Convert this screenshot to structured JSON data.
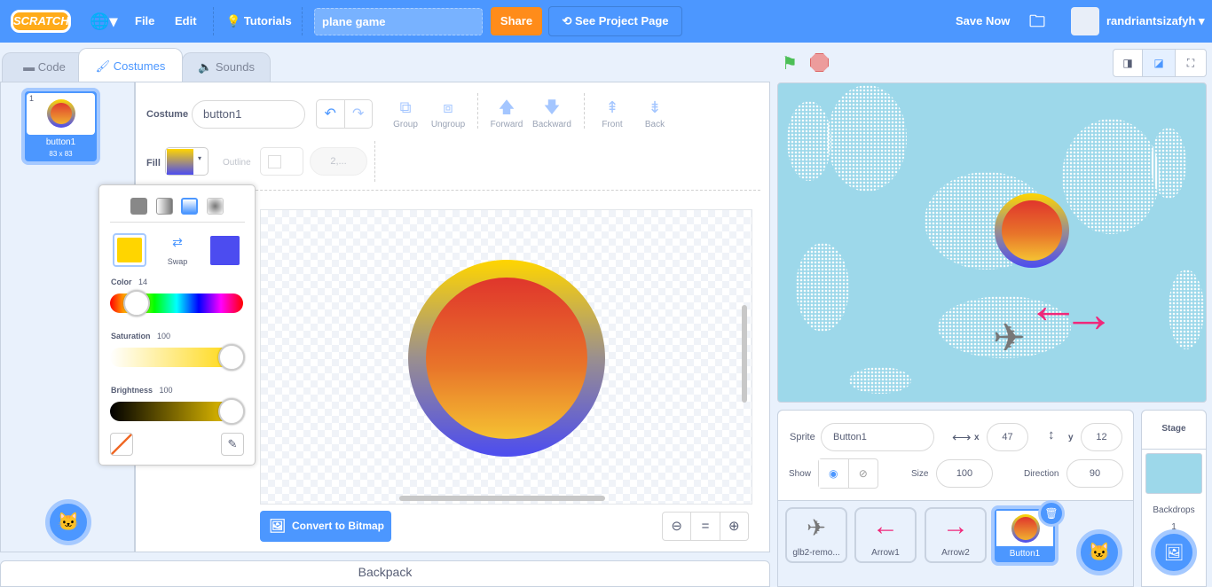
{
  "menu": {
    "logo": "SCRATCH",
    "file": "File",
    "edit": "Edit",
    "tutorials": "Tutorials",
    "project_title": "plane game",
    "share": "Share",
    "see_project_page": "See Project Page",
    "save_now": "Save Now",
    "username": "randriantsizafyh"
  },
  "tabs": [
    {
      "label": "Code"
    },
    {
      "label": "Costumes"
    },
    {
      "label": "Sounds"
    }
  ],
  "costume_list": [
    {
      "index": "1",
      "name": "button1",
      "size": "83 x 83"
    }
  ],
  "editor": {
    "costume_label": "Costume",
    "costume_name": "button1",
    "tools": [
      "Group",
      "Ungroup",
      "Forward",
      "Backward",
      "Front",
      "Back"
    ],
    "fill_label": "Fill",
    "outline_label": "Outline",
    "outline_width": "2,...",
    "convert_button": "Convert to Bitmap"
  },
  "color_picker": {
    "swap_label": "Swap",
    "color_label": "Color",
    "color_value": "14",
    "saturation_label": "Saturation",
    "saturation_value": "100",
    "brightness_label": "Brightness",
    "brightness_value": "100",
    "primary": "#ffd500",
    "secondary": "#4c4cf0"
  },
  "sprite_info": {
    "sprite_label": "Sprite",
    "sprite_name": "Button1",
    "x_label": "x",
    "x": "47",
    "y_label": "y",
    "y": "12",
    "show_label": "Show",
    "size_label": "Size",
    "size": "100",
    "direction_label": "Direction",
    "direction": "90"
  },
  "sprites": [
    {
      "name": "glb2-remo..."
    },
    {
      "name": "Arrow1"
    },
    {
      "name": "Arrow2"
    },
    {
      "name": "Button1"
    }
  ],
  "stage_pane": {
    "title": "Stage",
    "backdrops_label": "Backdrops",
    "backdrops_count": "1"
  },
  "backpack": "Backpack",
  "colors": {
    "accent": "#4c97ff",
    "share": "#ff8c1a",
    "arrow": "#f0287a",
    "stage_bg": "#9dd8ea"
  }
}
